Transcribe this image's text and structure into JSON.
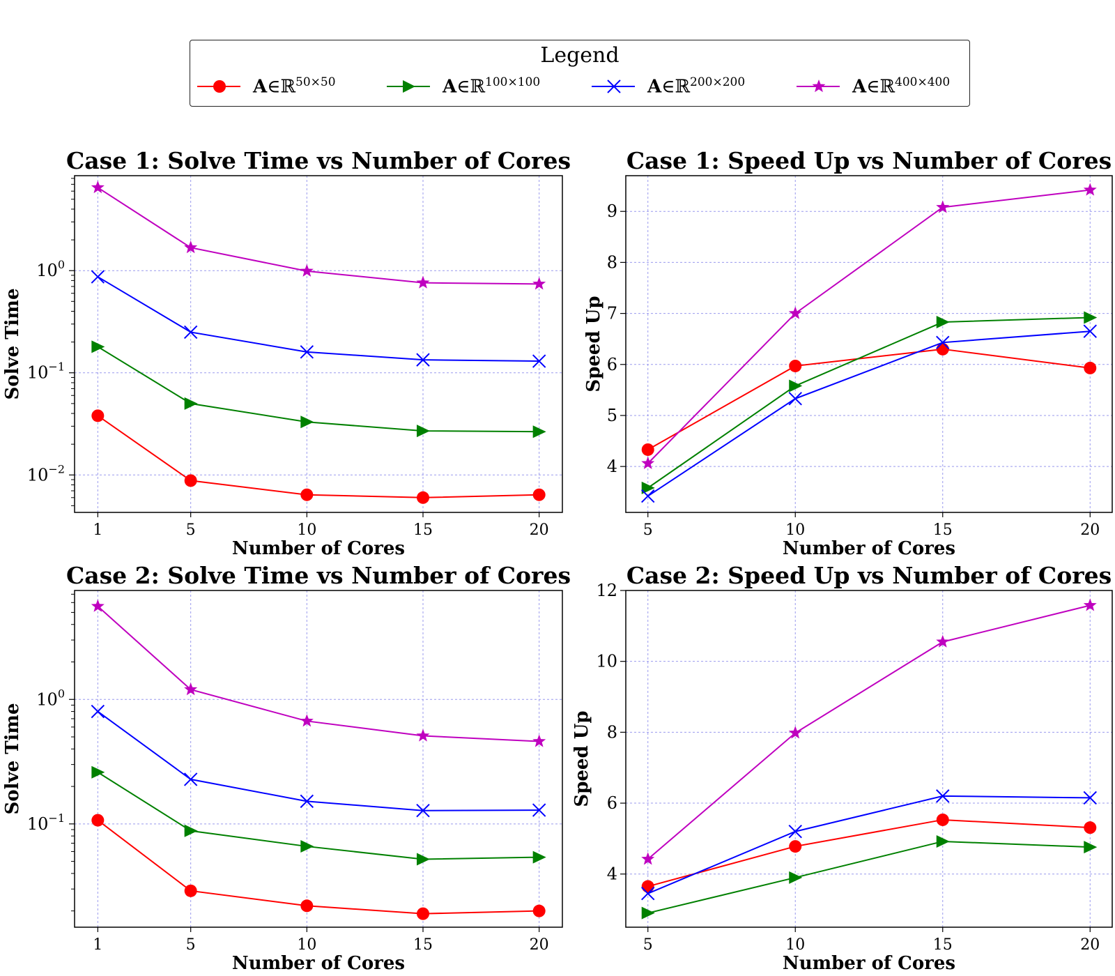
{
  "legend": {
    "title": "Legend",
    "entries": [
      {
        "prefix": "A",
        "member": "∈",
        "set": "ℝ",
        "dims": "50×50",
        "color": "#ff0000",
        "marker": "circle"
      },
      {
        "prefix": "A",
        "member": "∈",
        "set": "ℝ",
        "dims": "100×100",
        "color": "#008000",
        "marker": "triangle-right"
      },
      {
        "prefix": "A",
        "member": "∈",
        "set": "ℝ",
        "dims": "200×200",
        "color": "#0000ff",
        "marker": "x"
      },
      {
        "prefix": "A",
        "member": "∈",
        "set": "ℝ",
        "dims": "400×400",
        "color": "#bf00bf",
        "marker": "star"
      }
    ]
  },
  "chart_data": [
    {
      "type": "line",
      "title": "Case 1: Solve Time vs Number of Cores",
      "xlabel": "Number of Cores",
      "ylabel": "Solve Time",
      "yscale": "log",
      "x": [
        1,
        5,
        10,
        15,
        20
      ],
      "xticks": [
        "1",
        "5",
        "10",
        "15",
        "20"
      ],
      "yticks": [
        {
          "value": 0.01,
          "base": "10",
          "exp": "−2"
        },
        {
          "value": 0.1,
          "base": "10",
          "exp": "−1"
        },
        {
          "value": 1,
          "base": "10",
          "exp": "0"
        }
      ],
      "ylim": [
        0.0043,
        8.5
      ],
      "xlim": [
        0,
        21
      ],
      "grid": true,
      "series": [
        {
          "values": [
            0.038,
            0.0088,
            0.0064,
            0.006,
            0.0064
          ]
        },
        {
          "values": [
            0.18,
            0.05,
            0.033,
            0.027,
            0.0265
          ]
        },
        {
          "values": [
            0.87,
            0.25,
            0.16,
            0.134,
            0.13
          ]
        },
        {
          "values": [
            6.5,
            1.68,
            0.99,
            0.76,
            0.74
          ]
        }
      ]
    },
    {
      "type": "line",
      "title": "Case 1: Speed Up vs Number of Cores",
      "xlabel": "Number of Cores",
      "ylabel": "Speed Up",
      "yscale": "linear",
      "x": [
        5,
        10,
        15,
        20
      ],
      "xticks": [
        "5",
        "10",
        "15",
        "20"
      ],
      "yticks": [
        {
          "value": 4,
          "label": "4"
        },
        {
          "value": 5,
          "label": "5"
        },
        {
          "value": 6,
          "label": "6"
        },
        {
          "value": 7,
          "label": "7"
        },
        {
          "value": 8,
          "label": "8"
        },
        {
          "value": 9,
          "label": "9"
        }
      ],
      "ylim": [
        3.1,
        9.7
      ],
      "xlim": [
        4.25,
        20.75
      ],
      "grid": true,
      "series": [
        {
          "values": [
            4.33,
            5.97,
            6.3,
            5.93
          ]
        },
        {
          "values": [
            3.58,
            5.58,
            6.83,
            6.92
          ]
        },
        {
          "values": [
            3.42,
            5.33,
            6.43,
            6.65
          ]
        },
        {
          "values": [
            4.06,
            7.0,
            9.08,
            9.42
          ]
        }
      ]
    },
    {
      "type": "line",
      "title": "Case 2: Solve Time vs Number of Cores",
      "xlabel": "Number of Cores",
      "ylabel": "Solve Time",
      "yscale": "log",
      "x": [
        1,
        5,
        10,
        15,
        20
      ],
      "xticks": [
        "1",
        "5",
        "10",
        "15",
        "20"
      ],
      "yticks": [
        {
          "value": 0.1,
          "base": "10",
          "exp": "−1"
        },
        {
          "value": 1,
          "base": "10",
          "exp": "0"
        }
      ],
      "ylim": [
        0.0148,
        7.5
      ],
      "xlim": [
        0,
        21
      ],
      "grid": true,
      "series": [
        {
          "values": [
            0.107,
            0.029,
            0.022,
            0.019,
            0.02
          ]
        },
        {
          "values": [
            0.26,
            0.088,
            0.066,
            0.052,
            0.054
          ]
        },
        {
          "values": [
            0.8,
            0.228,
            0.152,
            0.128,
            0.129
          ]
        },
        {
          "values": [
            5.6,
            1.2,
            0.67,
            0.51,
            0.46
          ]
        }
      ]
    },
    {
      "type": "line",
      "title": "Case 2: Speed Up vs Number of Cores",
      "xlabel": "Number of Cores",
      "ylabel": "Speed Up",
      "yscale": "linear",
      "x": [
        5,
        10,
        15,
        20
      ],
      "xticks": [
        "5",
        "10",
        "15",
        "20"
      ],
      "yticks": [
        {
          "value": 4,
          "label": "4"
        },
        {
          "value": 6,
          "label": "6"
        },
        {
          "value": 8,
          "label": "8"
        },
        {
          "value": 10,
          "label": "10"
        },
        {
          "value": 12,
          "label": "12"
        }
      ],
      "ylim": [
        2.5,
        12.0
      ],
      "xlim": [
        4.25,
        20.75
      ],
      "grid": true,
      "series": [
        {
          "values": [
            3.65,
            4.78,
            5.53,
            5.31
          ]
        },
        {
          "values": [
            2.9,
            3.9,
            4.92,
            4.76
          ]
        },
        {
          "values": [
            3.45,
            5.2,
            6.2,
            6.15
          ]
        },
        {
          "values": [
            4.42,
            7.98,
            10.55,
            11.58
          ]
        }
      ]
    }
  ]
}
